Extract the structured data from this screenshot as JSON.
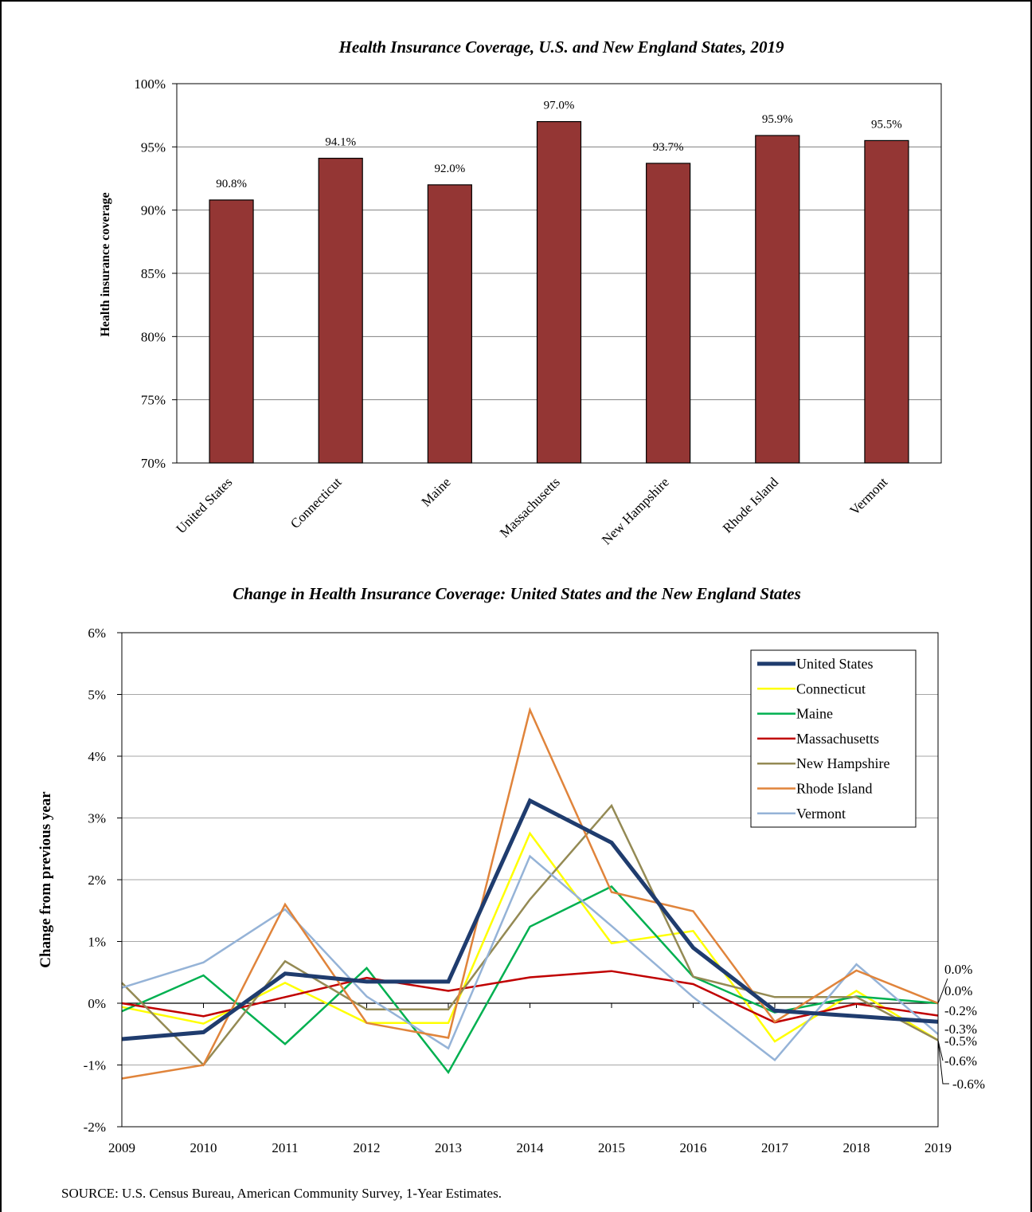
{
  "chart_data": [
    {
      "type": "bar",
      "title": "Health Insurance Coverage, U.S. and New England States, 2019",
      "ylabel": "Health insurance coverage",
      "ylim": [
        70,
        100
      ],
      "yticks": [
        "70%",
        "75%",
        "80%",
        "85%",
        "90%",
        "95%",
        "100%"
      ],
      "categories": [
        "United States",
        "Connecticut",
        "Maine",
        "Massachusetts",
        "New Hampshire",
        "Rhode Island",
        "Vermont"
      ],
      "values": [
        90.8,
        94.1,
        92.0,
        97.0,
        93.7,
        95.9,
        95.5
      ],
      "data_labels": [
        "90.8%",
        "94.1%",
        "92.0%",
        "97.0%",
        "93.7%",
        "95.9%",
        "95.5%"
      ],
      "bar_color": "#943634",
      "grid": true
    },
    {
      "type": "line",
      "title": "Change in Health Insurance Coverage: United States and the New England States",
      "ylabel": "Change from previous year",
      "ylim": [
        -2,
        6
      ],
      "yticks": [
        "-2%",
        "-1%",
        "0%",
        "1%",
        "2%",
        "3%",
        "4%",
        "5%",
        "6%"
      ],
      "x": [
        "2009",
        "2010",
        "2011",
        "2012",
        "2013",
        "2014",
        "2015",
        "2016",
        "2017",
        "2018",
        "2019"
      ],
      "grid": true,
      "legend": "top-right",
      "series": [
        {
          "name": "United States",
          "color": "#1f3c6e",
          "width": 5,
          "values": [
            -0.58,
            -0.47,
            0.48,
            0.35,
            0.35,
            3.28,
            2.6,
            0.9,
            -0.12,
            -0.21,
            -0.3
          ]
        },
        {
          "name": "Connecticut",
          "color": "#ffff00",
          "width": 2.5,
          "values": [
            -0.06,
            -0.33,
            0.33,
            -0.32,
            -0.32,
            2.75,
            0.97,
            1.17,
            -0.62,
            0.2,
            -0.6
          ]
        },
        {
          "name": "Maine",
          "color": "#00b050",
          "width": 2.5,
          "values": [
            -0.13,
            0.45,
            -0.66,
            0.57,
            -1.12,
            1.24,
            1.89,
            0.43,
            -0.15,
            0.11,
            0.0
          ]
        },
        {
          "name": "Massachusetts",
          "color": "#c00000",
          "width": 2.5,
          "values": [
            0.0,
            -0.21,
            0.1,
            0.41,
            0.2,
            0.42,
            0.52,
            0.31,
            -0.31,
            -0.01,
            -0.2
          ]
        },
        {
          "name": "New Hampshire",
          "color": "#948a54",
          "width": 2.5,
          "values": [
            0.33,
            -1.0,
            0.68,
            -0.1,
            -0.1,
            1.68,
            3.2,
            0.43,
            0.1,
            0.1,
            -0.6
          ]
        },
        {
          "name": "Rhode Island",
          "color": "#e0843b",
          "width": 2.5,
          "values": [
            -1.22,
            -1.0,
            1.6,
            -0.32,
            -0.56,
            4.75,
            1.8,
            1.49,
            -0.3,
            0.53,
            0.0
          ]
        },
        {
          "name": "Vermont",
          "color": "#95b3d7",
          "width": 2.5,
          "values": [
            0.25,
            0.66,
            1.52,
            0.11,
            -0.73,
            2.38,
            1.25,
            0.1,
            -0.92,
            0.63,
            -0.5
          ]
        }
      ],
      "end_labels": [
        "0.0%",
        "0.0%",
        "-0.2%",
        "-0.3%",
        "-0.5%",
        "-0.6%",
        "-0.6%"
      ]
    }
  ],
  "source": "SOURCE: U.S. Census Bureau, American Community Survey, 1-Year Estimates."
}
